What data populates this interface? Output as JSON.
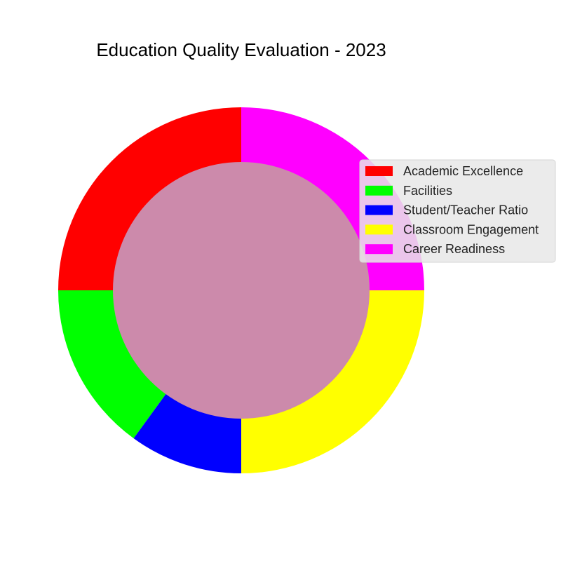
{
  "chart_data": {
    "type": "pie",
    "title": "Education Quality Evaluation - 2023",
    "donut": true,
    "categories": [
      "Academic Excellence",
      "Facilities",
      "Student/Teacher Ratio",
      "Classroom Engagement",
      "Career Readiness"
    ],
    "values": [
      25,
      15,
      10,
      25,
      25
    ],
    "colors": [
      "#ff0000",
      "#00ff00",
      "#0000ff",
      "#ffff00",
      "#ff00ff"
    ],
    "center_color": "#cc8aab",
    "start_angle_deg": 90,
    "direction": "counterclockwise",
    "legend": {
      "placement": "right",
      "background": "#e8e8e8"
    }
  }
}
